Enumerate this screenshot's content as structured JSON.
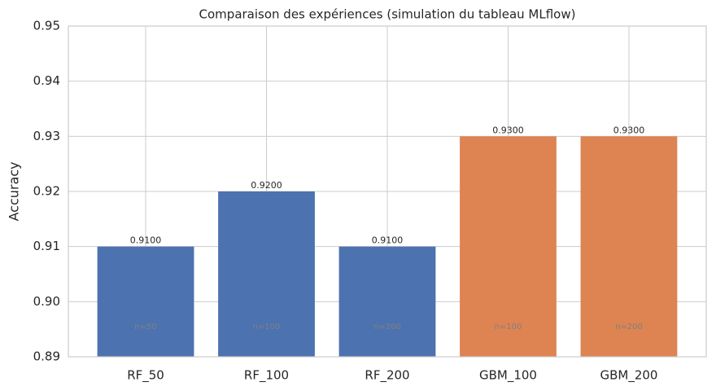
{
  "chart_data": {
    "type": "bar",
    "title": "Comparaison des expériences (simulation du tableau MLflow)",
    "y_label": "Accuracy",
    "categories": [
      "RF_50",
      "RF_100",
      "RF_200",
      "GBM_100",
      "GBM_200"
    ],
    "values": [
      0.91,
      0.92,
      0.91,
      0.93,
      0.93
    ],
    "value_labels": [
      "0.9100",
      "0.9200",
      "0.9100",
      "0.9300",
      "0.9300"
    ],
    "annotations": [
      "n=50",
      "n=100",
      "n=200",
      "n=100",
      "n=200"
    ],
    "colors": [
      "#4c72b0",
      "#4c72b0",
      "#4c72b0",
      "#dd8452",
      "#dd8452"
    ],
    "ylim": [
      0.89,
      0.95
    ],
    "yticks": [
      0.89,
      {
        "value": 0.9,
        "label": "0.90"
      },
      0.91,
      0.92,
      0.93,
      0.94,
      0.95
    ],
    "grid": true
  }
}
